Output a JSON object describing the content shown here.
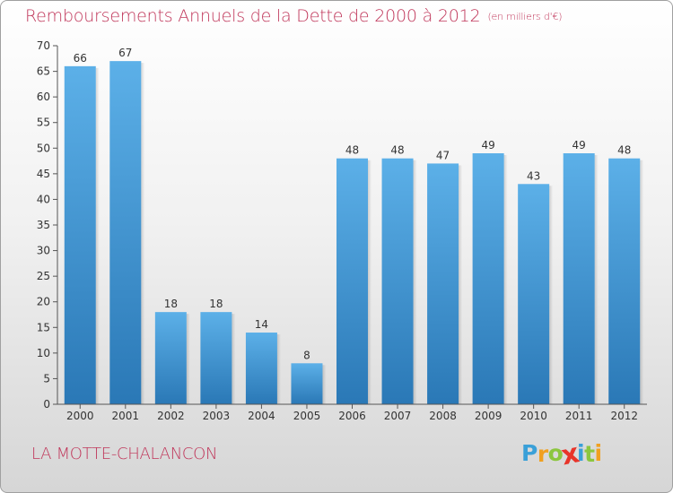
{
  "header": {
    "title": "Remboursements Annuels de la Dette de 2000 à 2012",
    "unit": "(en milliers d'€)"
  },
  "footer": {
    "commune": "LA MOTTE-CHALANCON",
    "logo": {
      "letters": [
        "P",
        "r",
        "o",
        "x",
        "i",
        "t",
        "i"
      ],
      "colors": [
        "#3aa0d8",
        "#f0a020",
        "#8cc63f",
        "#e8342a",
        "#3aa0d8",
        "#8cc63f",
        "#f0a020"
      ]
    }
  },
  "colors": {
    "accent": "#c0365a",
    "bar_light": "#5aaee6",
    "bar_dark": "#2a7ab8"
  },
  "chart_data": {
    "type": "bar",
    "categories": [
      "2000",
      "2001",
      "2002",
      "2003",
      "2004",
      "2005",
      "2006",
      "2007",
      "2008",
      "2009",
      "2010",
      "2011",
      "2012"
    ],
    "values": [
      66,
      67,
      18,
      18,
      14,
      8,
      48,
      48,
      47,
      49,
      43,
      49,
      48
    ],
    "title": "Remboursements Annuels de la Dette de 2000 à 2012",
    "subtitle": "(en milliers d'€)",
    "ylim": [
      0,
      70
    ],
    "yticks": [
      0,
      5,
      10,
      15,
      20,
      25,
      30,
      35,
      40,
      45,
      50,
      55,
      60,
      65,
      70
    ],
    "grid": false,
    "data_labels": true
  }
}
